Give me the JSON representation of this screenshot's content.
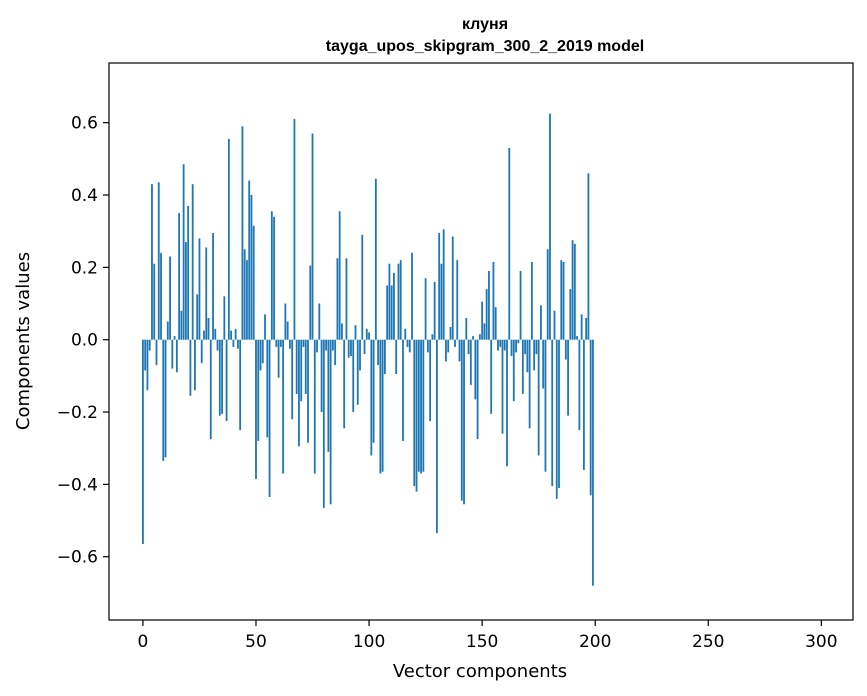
{
  "chart_data": {
    "type": "bar",
    "title_line1": "клуня",
    "title_line2": "tayga_upos_skipgram_300_2_2019 model",
    "xlabel": "Vector components",
    "ylabel": "Components values",
    "xlim": [
      -15,
      314
    ],
    "ylim": [
      -0.775,
      0.765
    ],
    "x_ticks": [
      0,
      50,
      100,
      150,
      200,
      250,
      300
    ],
    "x_tick_labels": [
      "0",
      "50",
      "100",
      "150",
      "200",
      "250",
      "300"
    ],
    "y_ticks": [
      -0.6,
      -0.4,
      -0.2,
      0.0,
      0.2,
      0.4,
      0.6
    ],
    "y_tick_labels": [
      "−0.6",
      "−0.4",
      "−0.2",
      "0.0",
      "0.2",
      "0.4",
      "0.6"
    ],
    "bar_color": "#1f77b4",
    "grid": false,
    "values": [
      -0.565,
      -0.085,
      -0.14,
      -0.03,
      0.43,
      0.21,
      -0.07,
      0.435,
      0.24,
      -0.335,
      -0.325,
      0.05,
      0.23,
      -0.08,
      0.01,
      -0.09,
      0.35,
      0.08,
      0.485,
      0.27,
      0.37,
      -0.155,
      0.43,
      -0.14,
      0.125,
      0.28,
      -0.065,
      0.025,
      0.255,
      0.06,
      -0.275,
      0.295,
      0.03,
      -0.03,
      -0.21,
      -0.205,
      0.12,
      -0.225,
      0.555,
      0.025,
      -0.02,
      0.03,
      -0.025,
      -0.25,
      0.59,
      0.25,
      0.22,
      0.44,
      0.4,
      0.315,
      -0.385,
      -0.28,
      -0.085,
      -0.065,
      0.07,
      -0.27,
      -0.435,
      0.355,
      0.34,
      -0.02,
      -0.105,
      -0.02,
      -0.37,
      0.1,
      0.05,
      -0.025,
      -0.22,
      0.61,
      -0.15,
      -0.295,
      -0.17,
      -0.02,
      -0.15,
      -0.285,
      0.205,
      0.57,
      -0.37,
      -0.035,
      0.1,
      -0.2,
      -0.465,
      -0.03,
      -0.31,
      -0.455,
      -0.03,
      -0.07,
      0.225,
      0.355,
      0.045,
      -0.245,
      0.225,
      -0.05,
      -0.045,
      -0.2,
      0.04,
      -0.18,
      -0.085,
      0.29,
      -0.04,
      0.03,
      0.02,
      -0.32,
      -0.285,
      0.445,
      -0.07,
      -0.37,
      -0.365,
      -0.095,
      0.15,
      0.21,
      0.15,
      0.185,
      -0.095,
      0.21,
      0.22,
      -0.28,
      0.03,
      -0.02,
      -0.035,
      0.24,
      -0.405,
      -0.42,
      -0.365,
      -0.37,
      -0.365,
      0.17,
      -0.035,
      -0.225,
      0.015,
      0.16,
      -0.535,
      0.295,
      0.21,
      0.305,
      -0.06,
      -0.035,
      0.035,
      0.285,
      -0.02,
      0.22,
      -0.06,
      -0.445,
      -0.455,
      0.06,
      -0.04,
      -0.125,
      0.01,
      -0.165,
      -0.275,
      0.015,
      0.105,
      0.045,
      0.14,
      0.19,
      -0.205,
      0.215,
      0.09,
      -0.03,
      -0.02,
      -0.26,
      -0.03,
      -0.35,
      0.53,
      -0.045,
      -0.17,
      -0.035,
      -0.01,
      0.19,
      -0.15,
      -0.04,
      -0.09,
      -0.245,
      0.215,
      -0.085,
      -0.04,
      -0.32,
      0.095,
      -0.135,
      -0.365,
      0.25,
      0.625,
      -0.405,
      0.08,
      -0.44,
      -0.41,
      0.22,
      0.215,
      -0.055,
      -0.21,
      0.14,
      0.275,
      0.265,
      0.01,
      -0.25,
      0.07,
      -0.36,
      0.06,
      0.46,
      -0.43,
      -0.68
    ]
  }
}
